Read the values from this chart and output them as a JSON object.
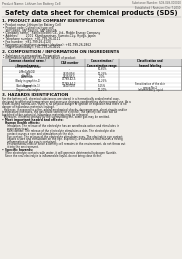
{
  "bg_color": "#f0ede8",
  "header_top_left": "Product Name: Lithium Ion Battery Cell",
  "header_top_right": "Substance Number: SDS-049-000010\nEstablished / Revision: Dec.7.2010",
  "main_title": "Safety data sheet for chemical products (SDS)",
  "section1_title": "1. PRODUCT AND COMPANY IDENTIFICATION",
  "section1_lines": [
    " • Product name: Lithium Ion Battery Cell",
    " • Product code: Cylindrical-type cell",
    "    SN*18650, SN*18650L, SN*18650A",
    " • Company name:   Sanyo Electric Co., Ltd., Mobile Energy Company",
    " • Address:         2001  Kamikazarinan, Sumoto-City, Hyogo, Japan",
    " • Telephone number:  +81-799-26-4111",
    " • Fax number:  +81-799-26-4120",
    " • Emergency telephone number (daytime): +81-799-26-2862",
    "    (Night and holiday): +81-799-26-4101"
  ],
  "section2_title": "2. COMPOSITION / INFORMATION ON INGREDIENTS",
  "section2_lines": [
    " • Substance or preparation: Preparation",
    " • Information about the chemical nature of product:"
  ],
  "table_headers": [
    "Common chemical name /\nSeveral names",
    "CAS number",
    "Concentration /\nConcentration range",
    "Classification and\nhazard labeling"
  ],
  "row_data": [
    [
      "Lithium cobalt oxide\n(LiMnCoNiO2)",
      "-",
      "50-60%",
      ""
    ],
    [
      "Iron",
      "7439-89-6",
      "10-25%",
      ""
    ],
    [
      "Aluminum",
      "7429-90-5",
      "2-5%",
      ""
    ],
    [
      "Graphite\n(Body in graphite-1)\n(Active graphite-1)",
      "17769-42-5\n17769-44-2",
      "10-25%",
      ""
    ],
    [
      "Copper",
      "7440-50-8",
      "5-15%",
      "Sensitization of the skin\ngroup No.2"
    ],
    [
      "Organic electrolyte",
      "-",
      "10-20%",
      "Inflammatory liquid"
    ]
  ],
  "section3_title": "3. HAZARDS IDENTIFICATION",
  "section3_paras": [
    "For the battery cell, chemical substances are stored in a hermetically sealed metal case, designed to withstand temperature and pressure changes-combinations during normal use. As a result, during normal-use, there is no physical danger of ignition or explosion and there is no danger of hazardous materials leakage.",
    "  However, if exposed to a fire, added mechanical shocks, decompresses, short-circuits and/or temperature increases, the gas inside vented (or ejected). The battery cell case will be breached of fire-potential, hazardous materials may be released.",
    "  Moreover, if heated strongly by the surrounding fire, some gas may be emitted."
  ],
  "bullet_most_important": "• Most important hazard and effects:",
  "human_label": "Human health effects:",
  "effect_lines": [
    "Inhalation: The release of the electrolyte has an anesthesia action and stimulates in respiratory tract.",
    "Skin contact: The release of the electrolyte stimulates a skin. The electrolyte skin contact causes a sore and stimulation on the skin.",
    "Eye contact: The release of the electrolyte stimulates eyes. The electrolyte eye contact causes a sore and stimulation on the eye. Especially, a substance that causes a strong inflammation of the eye is contained.",
    "Environmental effects: Since a battery cell remains in the environment, do not throw out it into the environment."
  ],
  "bullet_specific": "• Specific hazards:",
  "specific_lines": [
    "If the electrolyte contacts with water, it will generate detrimental hydrogen fluoride.",
    "Since the real electrolyte is inflammable liquid, do not bring close to fire."
  ]
}
